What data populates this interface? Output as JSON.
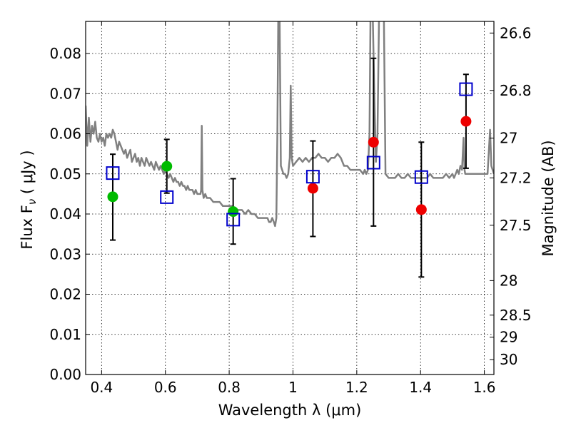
{
  "chart_data": {
    "type": "scatter",
    "xlabel": "Wavelength  λ (μm)",
    "ylabel": "Flux  F",
    "ylabel_sub": "ν",
    "ylabel_unit": " ( μJy )",
    "y2label": "Magnitude (AB)",
    "xlim": [
      0.35,
      1.63
    ],
    "ylim": [
      0.0,
      0.088
    ],
    "grid": true,
    "x_ticks": [
      0.4,
      0.6,
      0.8,
      1.0,
      1.2,
      1.4,
      1.6
    ],
    "x_tick_labels": [
      "0.4",
      "0.6",
      "0.8",
      "1",
      "1.2",
      "1.4",
      "1.6"
    ],
    "y_ticks": [
      0.0,
      0.01,
      0.02,
      0.03,
      0.04,
      0.05,
      0.06,
      0.07,
      0.08
    ],
    "y_tick_labels": [
      "0.00",
      "0.01",
      "0.02",
      "0.03",
      "0.04",
      "0.05",
      "0.06",
      "0.07",
      "0.08"
    ],
    "mag_ticks": [
      {
        "label": "26.6",
        "flux": 0.0851
      },
      {
        "label": "26.8",
        "flux": 0.0708
      },
      {
        "label": "27",
        "flux": 0.0589
      },
      {
        "label": "27.2",
        "flux": 0.049
      },
      {
        "label": "27.5",
        "flux": 0.0372
      },
      {
        "label": "28",
        "flux": 0.0234
      },
      {
        "label": "28.5",
        "flux": 0.0148
      },
      {
        "label": "29",
        "flux": 0.0093
      },
      {
        "label": "30",
        "flux": 0.0037
      }
    ],
    "series": [
      {
        "name": "model spectrum",
        "style": "line",
        "color": "#808080",
        "points": [
          [
            0.35,
            0.067
          ],
          [
            0.355,
            0.057
          ],
          [
            0.36,
            0.064
          ],
          [
            0.365,
            0.058
          ],
          [
            0.37,
            0.062
          ],
          [
            0.375,
            0.06
          ],
          [
            0.38,
            0.063
          ],
          [
            0.385,
            0.059
          ],
          [
            0.39,
            0.058
          ],
          [
            0.395,
            0.06
          ],
          [
            0.4,
            0.058
          ],
          [
            0.405,
            0.059
          ],
          [
            0.41,
            0.057
          ],
          [
            0.415,
            0.06
          ],
          [
            0.42,
            0.059
          ],
          [
            0.425,
            0.06
          ],
          [
            0.43,
            0.059
          ],
          [
            0.435,
            0.061
          ],
          [
            0.44,
            0.06
          ],
          [
            0.445,
            0.058
          ],
          [
            0.45,
            0.056
          ],
          [
            0.455,
            0.058
          ],
          [
            0.46,
            0.057
          ],
          [
            0.465,
            0.056
          ],
          [
            0.47,
            0.055
          ],
          [
            0.475,
            0.056
          ],
          [
            0.48,
            0.054
          ],
          [
            0.485,
            0.055
          ],
          [
            0.49,
            0.056
          ],
          [
            0.495,
            0.053
          ],
          [
            0.5,
            0.054
          ],
          [
            0.505,
            0.055
          ],
          [
            0.51,
            0.053
          ],
          [
            0.515,
            0.054
          ],
          [
            0.52,
            0.052
          ],
          [
            0.525,
            0.054
          ],
          [
            0.53,
            0.053
          ],
          [
            0.535,
            0.052
          ],
          [
            0.54,
            0.054
          ],
          [
            0.545,
            0.053
          ],
          [
            0.55,
            0.052
          ],
          [
            0.555,
            0.053
          ],
          [
            0.56,
            0.052
          ],
          [
            0.565,
            0.051
          ],
          [
            0.57,
            0.053
          ],
          [
            0.575,
            0.052
          ],
          [
            0.58,
            0.051
          ],
          [
            0.585,
            0.052
          ],
          [
            0.59,
            0.051
          ],
          [
            0.595,
            0.05
          ],
          [
            0.6,
            0.051
          ],
          [
            0.605,
            0.05
          ],
          [
            0.61,
            0.049
          ],
          [
            0.615,
            0.05
          ],
          [
            0.62,
            0.049
          ],
          [
            0.625,
            0.048
          ],
          [
            0.63,
            0.049
          ],
          [
            0.635,
            0.048
          ],
          [
            0.64,
            0.048
          ],
          [
            0.645,
            0.047
          ],
          [
            0.65,
            0.048
          ],
          [
            0.655,
            0.047
          ],
          [
            0.66,
            0.047
          ],
          [
            0.665,
            0.046
          ],
          [
            0.67,
            0.047
          ],
          [
            0.675,
            0.046
          ],
          [
            0.68,
            0.046
          ],
          [
            0.685,
            0.046
          ],
          [
            0.69,
            0.045
          ],
          [
            0.695,
            0.046
          ],
          [
            0.7,
            0.045
          ],
          [
            0.705,
            0.045
          ],
          [
            0.71,
            0.045
          ],
          [
            0.712,
            0.046
          ],
          [
            0.714,
            0.062
          ],
          [
            0.716,
            0.046
          ],
          [
            0.72,
            0.044
          ],
          [
            0.725,
            0.045
          ],
          [
            0.73,
            0.044
          ],
          [
            0.74,
            0.044
          ],
          [
            0.75,
            0.043
          ],
          [
            0.76,
            0.043
          ],
          [
            0.77,
            0.043
          ],
          [
            0.78,
            0.042
          ],
          [
            0.79,
            0.042
          ],
          [
            0.8,
            0.042
          ],
          [
            0.81,
            0.042
          ],
          [
            0.82,
            0.041
          ],
          [
            0.83,
            0.041
          ],
          [
            0.84,
            0.041
          ],
          [
            0.85,
            0.04
          ],
          [
            0.86,
            0.041
          ],
          [
            0.87,
            0.04
          ],
          [
            0.88,
            0.04
          ],
          [
            0.89,
            0.039
          ],
          [
            0.9,
            0.039
          ],
          [
            0.91,
            0.039
          ],
          [
            0.92,
            0.039
          ],
          [
            0.925,
            0.038
          ],
          [
            0.93,
            0.038
          ],
          [
            0.935,
            0.039
          ],
          [
            0.94,
            0.038
          ],
          [
            0.944,
            0.037
          ],
          [
            0.948,
            0.039
          ],
          [
            0.951,
            0.06
          ],
          [
            0.954,
            0.09
          ],
          [
            0.958,
            0.09
          ],
          [
            0.962,
            0.052
          ],
          [
            0.966,
            0.051
          ],
          [
            0.97,
            0.05
          ],
          [
            0.975,
            0.05
          ],
          [
            0.98,
            0.049
          ],
          [
            0.985,
            0.05
          ],
          [
            0.99,
            0.054
          ],
          [
            0.993,
            0.072
          ],
          [
            0.996,
            0.054
          ],
          [
            1.0,
            0.052
          ],
          [
            1.01,
            0.053
          ],
          [
            1.02,
            0.054
          ],
          [
            1.03,
            0.053
          ],
          [
            1.04,
            0.054
          ],
          [
            1.05,
            0.053
          ],
          [
            1.06,
            0.054
          ],
          [
            1.07,
            0.054
          ],
          [
            1.08,
            0.055
          ],
          [
            1.09,
            0.054
          ],
          [
            1.1,
            0.054
          ],
          [
            1.11,
            0.053
          ],
          [
            1.12,
            0.054
          ],
          [
            1.13,
            0.054
          ],
          [
            1.14,
            0.055
          ],
          [
            1.15,
            0.054
          ],
          [
            1.16,
            0.052
          ],
          [
            1.17,
            0.052
          ],
          [
            1.18,
            0.051
          ],
          [
            1.19,
            0.051
          ],
          [
            1.2,
            0.051
          ],
          [
            1.21,
            0.051
          ],
          [
            1.22,
            0.05
          ],
          [
            1.225,
            0.051
          ],
          [
            1.23,
            0.05
          ],
          [
            1.235,
            0.051
          ],
          [
            1.24,
            0.06
          ],
          [
            1.243,
            0.09
          ],
          [
            1.25,
            0.09
          ],
          [
            1.255,
            0.07
          ],
          [
            1.26,
            0.053
          ],
          [
            1.265,
            0.06
          ],
          [
            1.27,
            0.09
          ],
          [
            1.285,
            0.09
          ],
          [
            1.29,
            0.05
          ],
          [
            1.3,
            0.049
          ],
          [
            1.31,
            0.049
          ],
          [
            1.32,
            0.049
          ],
          [
            1.33,
            0.05
          ],
          [
            1.34,
            0.049
          ],
          [
            1.35,
            0.049
          ],
          [
            1.36,
            0.05
          ],
          [
            1.37,
            0.049
          ],
          [
            1.38,
            0.049
          ],
          [
            1.39,
            0.049
          ],
          [
            1.4,
            0.049
          ],
          [
            1.41,
            0.049
          ],
          [
            1.42,
            0.049
          ],
          [
            1.43,
            0.05
          ],
          [
            1.44,
            0.049
          ],
          [
            1.45,
            0.049
          ],
          [
            1.46,
            0.049
          ],
          [
            1.47,
            0.049
          ],
          [
            1.48,
            0.05
          ],
          [
            1.49,
            0.049
          ],
          [
            1.5,
            0.05
          ],
          [
            1.505,
            0.049
          ],
          [
            1.51,
            0.05
          ],
          [
            1.515,
            0.051
          ],
          [
            1.52,
            0.05
          ],
          [
            1.525,
            0.052
          ],
          [
            1.53,
            0.051
          ],
          [
            1.535,
            0.059
          ],
          [
            1.538,
            0.051
          ],
          [
            1.54,
            0.05
          ],
          [
            1.55,
            0.05
          ],
          [
            1.56,
            0.05
          ],
          [
            1.57,
            0.05
          ],
          [
            1.58,
            0.05
          ],
          [
            1.59,
            0.05
          ],
          [
            1.6,
            0.05
          ],
          [
            1.61,
            0.05
          ],
          [
            1.618,
            0.061
          ],
          [
            1.622,
            0.052
          ],
          [
            1.63,
            0.05
          ]
        ]
      },
      {
        "name": "observed (green)",
        "style": "marker-circle",
        "color": "#00bb00",
        "points": [
          {
            "x": 0.435,
            "y": 0.0443
          },
          {
            "x": 0.6045,
            "y": 0.0519
          },
          {
            "x": 0.8125,
            "y": 0.0406
          }
        ]
      },
      {
        "name": "observed (red)",
        "style": "marker-circle",
        "color": "#ee0000",
        "points": [
          {
            "x": 1.0625,
            "y": 0.0464
          },
          {
            "x": 1.2525,
            "y": 0.0579
          },
          {
            "x": 1.4025,
            "y": 0.0411
          },
          {
            "x": 1.5425,
            "y": 0.0631
          }
        ]
      },
      {
        "name": "synthetic (blue squares)",
        "style": "marker-square",
        "color": "#0000cc",
        "points": [
          {
            "x": 0.435,
            "y": 0.0502
          },
          {
            "x": 0.6045,
            "y": 0.0442
          },
          {
            "x": 0.8125,
            "y": 0.0386
          },
          {
            "x": 1.0625,
            "y": 0.0493
          },
          {
            "x": 1.2525,
            "y": 0.0528
          },
          {
            "x": 1.4025,
            "y": 0.0492
          },
          {
            "x": 1.5425,
            "y": 0.0711
          }
        ]
      }
    ],
    "errorbars": [
      {
        "x": 0.435,
        "low": 0.0335,
        "high": 0.0549
      },
      {
        "x": 0.6045,
        "low": 0.0452,
        "high": 0.0586
      },
      {
        "x": 0.8125,
        "low": 0.0325,
        "high": 0.0488
      },
      {
        "x": 1.0625,
        "low": 0.0344,
        "high": 0.0582
      },
      {
        "x": 1.2525,
        "low": 0.037,
        "high": 0.0788
      },
      {
        "x": 1.4025,
        "low": 0.0243,
        "high": 0.0579
      },
      {
        "x": 1.5425,
        "low": 0.0514,
        "high": 0.0748
      }
    ]
  }
}
